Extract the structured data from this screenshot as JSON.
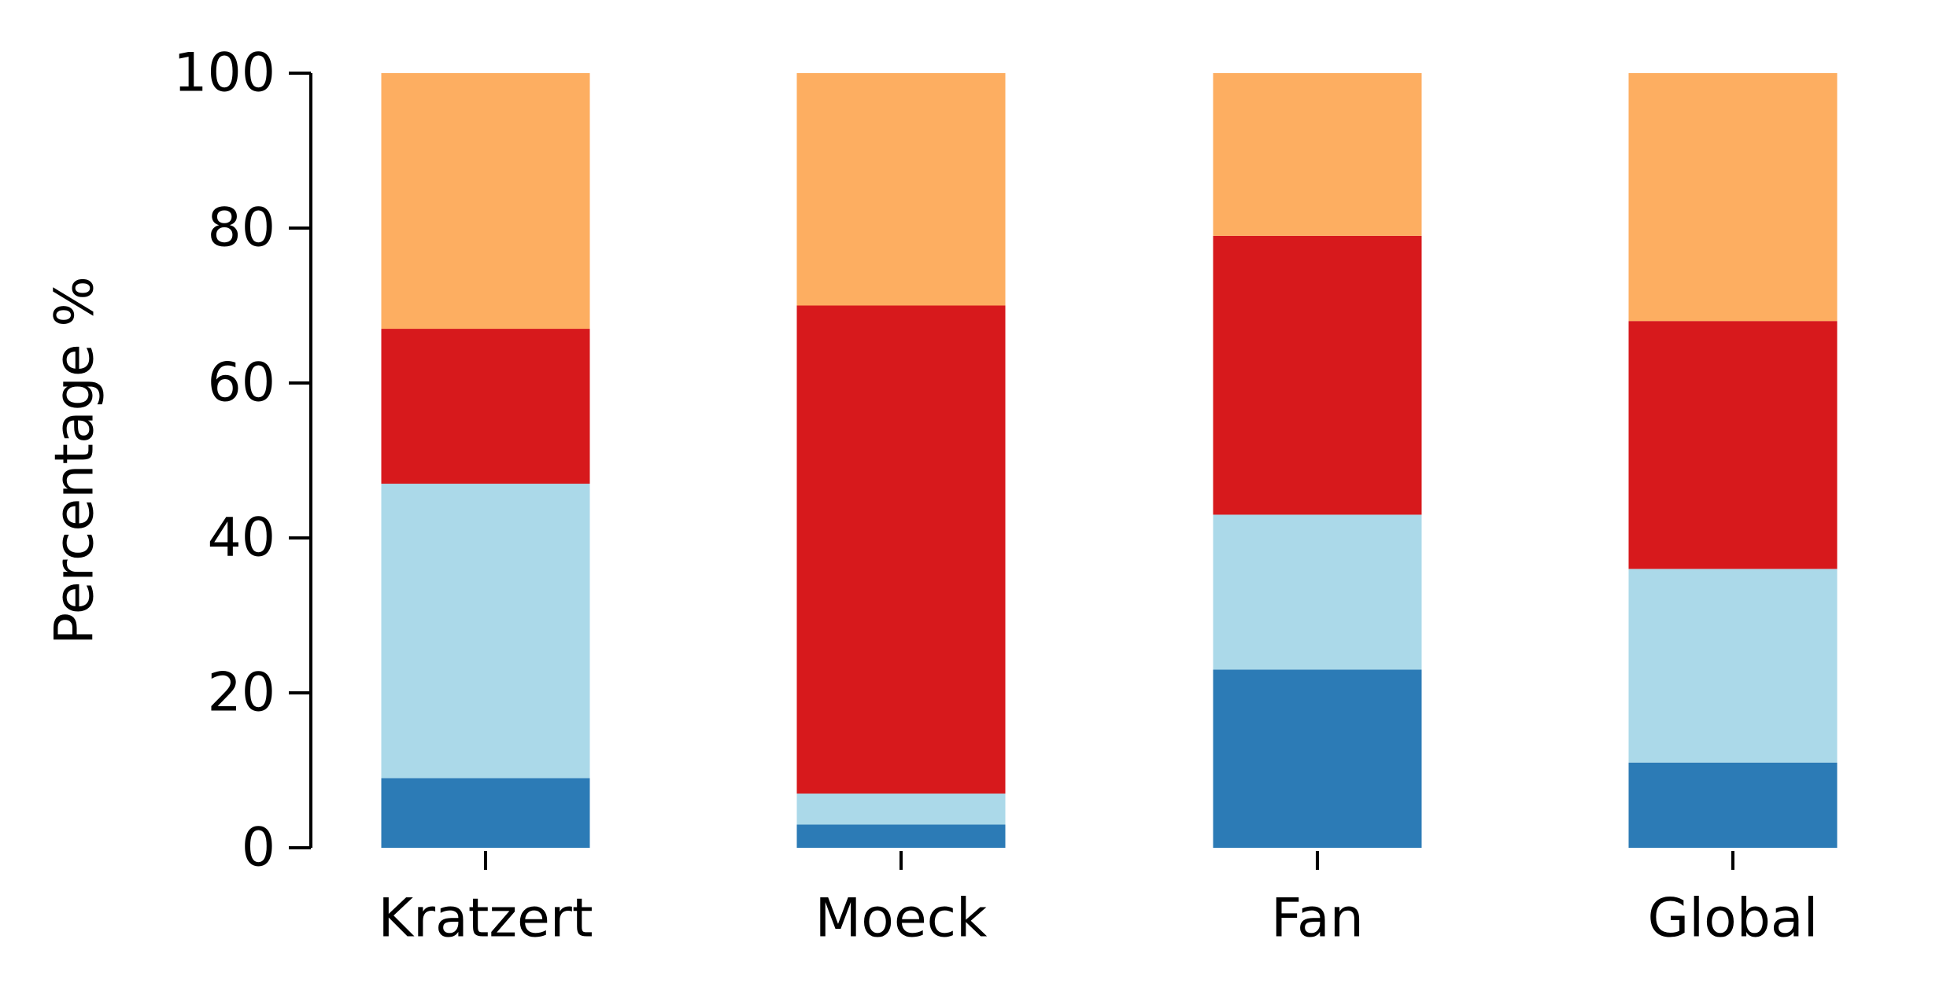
{
  "chart_data": {
    "type": "bar",
    "stacked": true,
    "categories": [
      "Kratzert",
      "Moeck",
      "Fan",
      "Global"
    ],
    "series": [
      {
        "color": "#2c7bb6",
        "values": [
          9,
          3,
          23,
          11
        ]
      },
      {
        "color": "#abd9e9",
        "values": [
          38,
          4,
          20,
          25
        ]
      },
      {
        "color": "#d7191c",
        "values": [
          20,
          63,
          36,
          32
        ]
      },
      {
        "color": "#fdae61",
        "values": [
          33,
          30,
          21,
          32
        ]
      }
    ],
    "ylabel": "Percentage %",
    "ylim": [
      0,
      100
    ],
    "yticks": [
      0,
      20,
      40,
      60,
      80,
      100
    ],
    "grid": false,
    "legend": "none"
  }
}
